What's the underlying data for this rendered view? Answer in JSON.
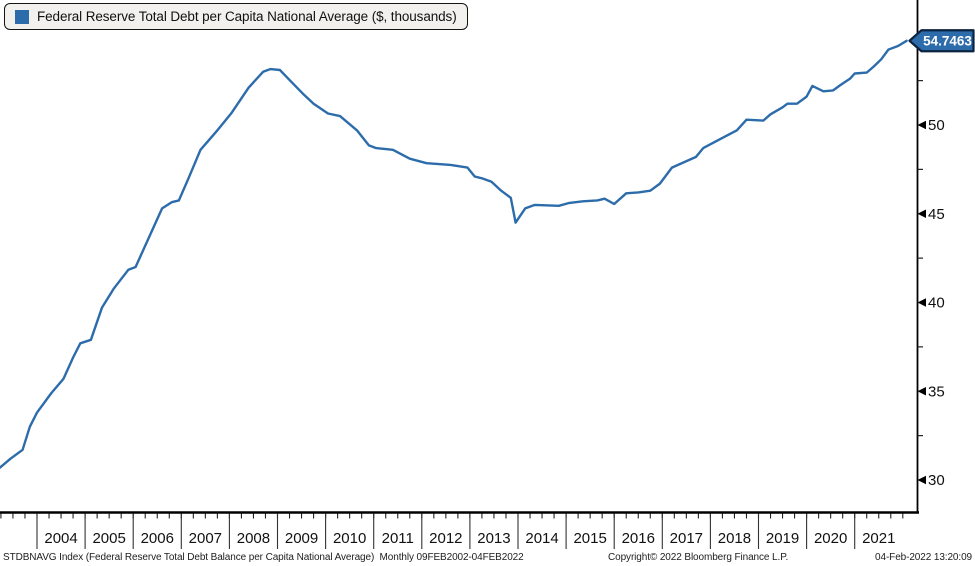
{
  "legend": {
    "label": "Federal Reserve Total Debt per Capita National Average ($, thousands)",
    "swatch_color": "#2d6cab"
  },
  "last_value_tag": {
    "text": "54.7463",
    "fill": "#2d6cab",
    "border": "#0c2340",
    "text_color": "#ffffff"
  },
  "footer": {
    "left": "STDBNAVG Index (Federal Reserve Total Debt Balance per Capita National Average)  Monthly 09FEB2002-04FEB2022",
    "copyright": "Copyright© 2022 Bloomberg Finance L.P.",
    "datetime": "04-Feb-2022 13:20:09"
  },
  "chart_data": {
    "type": "line",
    "title": "Federal Reserve Total Debt per Capita National Average ($, thousands)",
    "ticker": "STDBNAVG Index",
    "frequency": "Monthly",
    "date_range": "09FEB2002-04FEB2022",
    "ylabel": "$, thousands",
    "ylim": [
      28,
      57
    ],
    "y_ticks_major": [
      30,
      35,
      40,
      45,
      50
    ],
    "y_ticks_minor": [
      32.5,
      37.5,
      42.5,
      47.5,
      52.5
    ],
    "x_year_labels": [
      "2004",
      "2005",
      "2006",
      "2007",
      "2008",
      "2009",
      "2010",
      "2011",
      "2012",
      "2013",
      "2014",
      "2015",
      "2016",
      "2017",
      "2018",
      "2019",
      "2020",
      "2021"
    ],
    "grid": false,
    "legend_position": "top-left",
    "last_value": 54.7463,
    "axis_color": "#000000",
    "series": [
      {
        "name": "Federal Reserve Total Debt per Capita National Average ($, thousands)",
        "color": "#2d6cab",
        "points": [
          [
            2003.23,
            30.7
          ],
          [
            2003.45,
            31.2
          ],
          [
            2003.7,
            31.7
          ],
          [
            2003.85,
            33.0
          ],
          [
            2004.0,
            33.8
          ],
          [
            2004.3,
            34.9
          ],
          [
            2004.55,
            35.7
          ],
          [
            2004.75,
            36.9
          ],
          [
            2004.9,
            37.7
          ],
          [
            2005.12,
            37.9
          ],
          [
            2005.35,
            39.7
          ],
          [
            2005.6,
            40.8
          ],
          [
            2005.9,
            41.85
          ],
          [
            2006.05,
            42.0
          ],
          [
            2006.35,
            43.8
          ],
          [
            2006.6,
            45.3
          ],
          [
            2006.8,
            45.65
          ],
          [
            2006.95,
            45.75
          ],
          [
            2007.15,
            47.0
          ],
          [
            2007.4,
            48.6
          ],
          [
            2007.75,
            49.7
          ],
          [
            2008.05,
            50.7
          ],
          [
            2008.4,
            52.1
          ],
          [
            2008.7,
            53.0
          ],
          [
            2008.85,
            53.15
          ],
          [
            2009.05,
            53.1
          ],
          [
            2009.3,
            52.4
          ],
          [
            2009.55,
            51.7
          ],
          [
            2009.75,
            51.2
          ],
          [
            2010.05,
            50.65
          ],
          [
            2010.3,
            50.5
          ],
          [
            2010.65,
            49.7
          ],
          [
            2010.9,
            48.85
          ],
          [
            2011.05,
            48.7
          ],
          [
            2011.4,
            48.6
          ],
          [
            2011.75,
            48.1
          ],
          [
            2012.1,
            47.85
          ],
          [
            2012.6,
            47.75
          ],
          [
            2012.95,
            47.6
          ],
          [
            2013.1,
            47.1
          ],
          [
            2013.25,
            47.0
          ],
          [
            2013.45,
            46.8
          ],
          [
            2013.65,
            46.3
          ],
          [
            2013.85,
            45.9
          ],
          [
            2013.95,
            44.5
          ],
          [
            2014.15,
            45.3
          ],
          [
            2014.35,
            45.5
          ],
          [
            2014.85,
            45.45
          ],
          [
            2015.05,
            45.6
          ],
          [
            2015.35,
            45.7
          ],
          [
            2015.65,
            45.75
          ],
          [
            2015.8,
            45.85
          ],
          [
            2016.0,
            45.55
          ],
          [
            2016.25,
            46.15
          ],
          [
            2016.5,
            46.2
          ],
          [
            2016.75,
            46.3
          ],
          [
            2016.95,
            46.7
          ],
          [
            2017.2,
            47.6
          ],
          [
            2017.7,
            48.2
          ],
          [
            2017.85,
            48.7
          ],
          [
            2018.2,
            49.2
          ],
          [
            2018.55,
            49.7
          ],
          [
            2018.75,
            50.3
          ],
          [
            2019.1,
            50.25
          ],
          [
            2019.25,
            50.6
          ],
          [
            2019.5,
            51.0
          ],
          [
            2019.6,
            51.2
          ],
          [
            2019.8,
            51.2
          ],
          [
            2020.0,
            51.6
          ],
          [
            2020.12,
            52.2
          ],
          [
            2020.35,
            51.9
          ],
          [
            2020.55,
            51.95
          ],
          [
            2020.7,
            52.25
          ],
          [
            2020.9,
            52.6
          ],
          [
            2021.0,
            52.9
          ],
          [
            2021.25,
            52.95
          ],
          [
            2021.4,
            53.3
          ],
          [
            2021.55,
            53.7
          ],
          [
            2021.7,
            54.25
          ],
          [
            2021.9,
            54.45
          ],
          [
            2022.08,
            54.7463
          ]
        ]
      }
    ]
  }
}
